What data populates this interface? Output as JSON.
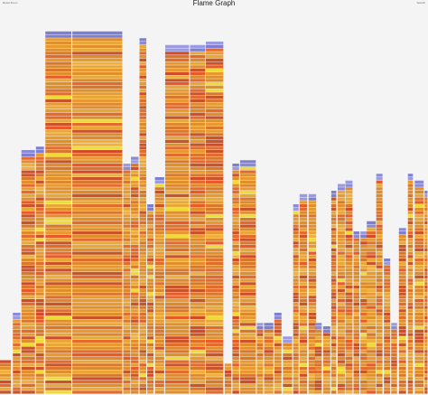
{
  "header": {
    "title": "Flame Graph",
    "reset_zoom": "Reset Zoom",
    "search": "Search"
  },
  "chart_data": {
    "type": "flame",
    "title": "Flame Graph",
    "xlabel": "",
    "ylabel": "",
    "palette": {
      "warm": [
        "#e0902a",
        "#e89a30",
        "#d9782a",
        "#e8a838",
        "#c9542a",
        "#e36b2c",
        "#dd8a2e",
        "#f0b040",
        "#ea5a28",
        "#eedb3a",
        "#d24a26"
      ],
      "cool": [
        "#8a8ad8",
        "#9b9be0",
        "#7f7fd0"
      ],
      "background": "#f4f4f4"
    },
    "stacks": [
      {
        "start": 0.0,
        "width": 2.7,
        "depth": 10
      },
      {
        "start": 3.0,
        "width": 1.9,
        "depth": 24
      },
      {
        "start": 5.0,
        "width": 3.3,
        "depth": 72
      },
      {
        "start": 8.4,
        "width": 2.0,
        "depth": 73
      },
      {
        "start": 10.6,
        "width": 6.2,
        "depth": 107
      },
      {
        "start": 16.9,
        "width": 11.8,
        "depth": 107
      },
      {
        "start": 28.8,
        "width": 1.8,
        "depth": 68
      },
      {
        "start": 30.6,
        "width": 1.9,
        "depth": 70
      },
      {
        "start": 32.6,
        "width": 1.7,
        "depth": 105
      },
      {
        "start": 34.4,
        "width": 1.6,
        "depth": 56
      },
      {
        "start": 36.2,
        "width": 2.3,
        "depth": 64
      },
      {
        "start": 38.6,
        "width": 5.7,
        "depth": 103
      },
      {
        "start": 44.4,
        "width": 3.7,
        "depth": 103
      },
      {
        "start": 48.1,
        "width": 4.2,
        "depth": 104
      },
      {
        "start": 52.5,
        "width": 1.7,
        "depth": 9
      },
      {
        "start": 54.3,
        "width": 1.7,
        "depth": 68
      },
      {
        "start": 56.1,
        "width": 3.8,
        "depth": 69
      },
      {
        "start": 60.0,
        "width": 1.6,
        "depth": 21
      },
      {
        "start": 61.7,
        "width": 2.3,
        "depth": 21
      },
      {
        "start": 64.1,
        "width": 1.8,
        "depth": 24
      },
      {
        "start": 66.1,
        "width": 2.3,
        "depth": 17
      },
      {
        "start": 68.5,
        "width": 1.4,
        "depth": 56
      },
      {
        "start": 70.0,
        "width": 1.9,
        "depth": 59
      },
      {
        "start": 72.1,
        "width": 1.9,
        "depth": 59
      },
      {
        "start": 73.6,
        "width": 1.7,
        "depth": 21
      },
      {
        "start": 75.5,
        "width": 1.8,
        "depth": 20
      },
      {
        "start": 77.4,
        "width": 1.3,
        "depth": 60
      },
      {
        "start": 78.9,
        "width": 1.8,
        "depth": 62
      },
      {
        "start": 80.7,
        "width": 1.8,
        "depth": 63
      },
      {
        "start": 82.6,
        "width": 1.5,
        "depth": 48
      },
      {
        "start": 84.2,
        "width": 1.7,
        "depth": 48
      },
      {
        "start": 85.7,
        "width": 2.2,
        "depth": 51
      },
      {
        "start": 87.9,
        "width": 1.6,
        "depth": 65
      },
      {
        "start": 89.7,
        "width": 1.6,
        "depth": 40
      },
      {
        "start": 91.4,
        "width": 1.5,
        "depth": 21
      },
      {
        "start": 93.2,
        "width": 1.8,
        "depth": 49
      },
      {
        "start": 95.3,
        "width": 1.3,
        "depth": 65
      },
      {
        "start": 96.9,
        "width": 2.2,
        "depth": 63
      },
      {
        "start": 99.2,
        "width": 0.8,
        "depth": 60
      }
    ]
  }
}
